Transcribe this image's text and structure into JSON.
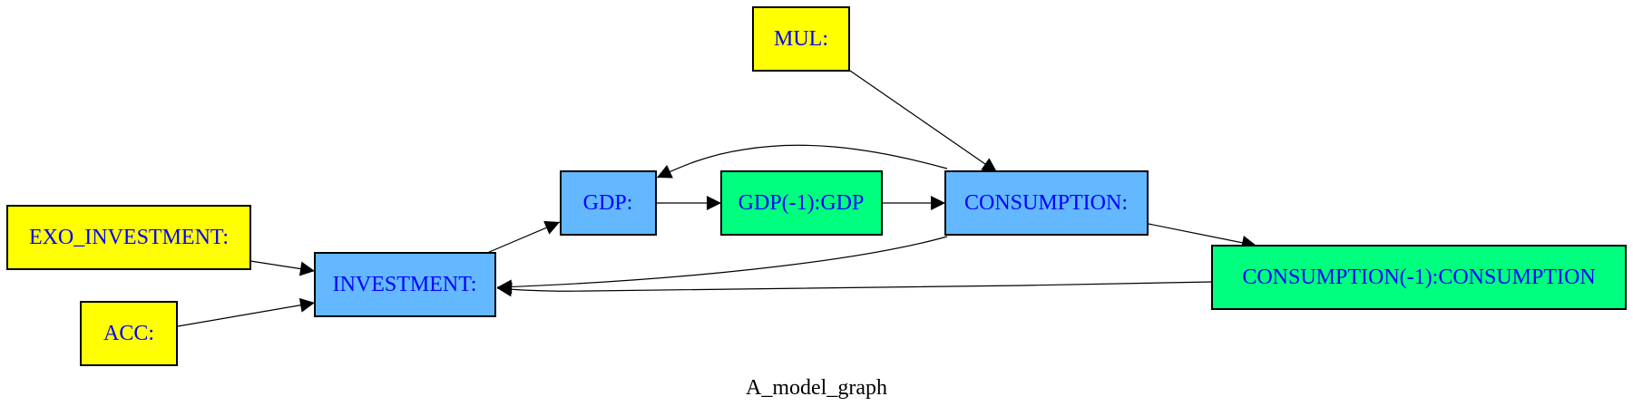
{
  "graph": {
    "caption": "A_model_graph"
  },
  "colors": {
    "exogenous": "#ffff00",
    "endogenous": "#63b8ff",
    "lagged": "#00ff7f",
    "label_text": "#0000ff",
    "edge": "#000000"
  },
  "nodes": {
    "mul": {
      "label": "MUL:",
      "kind": "exogenous"
    },
    "exo_investment": {
      "label": "EXO_INVESTMENT:",
      "kind": "exogenous"
    },
    "acc": {
      "label": "ACC:",
      "kind": "exogenous"
    },
    "investment": {
      "label": "INVESTMENT:",
      "kind": "endogenous"
    },
    "gdp": {
      "label": "GDP:",
      "kind": "endogenous"
    },
    "gdp_lag": {
      "label": "GDP(-1):GDP",
      "kind": "lagged"
    },
    "consumption": {
      "label": "CONSUMPTION:",
      "kind": "endogenous"
    },
    "consumption_lag": {
      "label": "CONSUMPTION(-1):CONSUMPTION",
      "kind": "lagged"
    }
  },
  "edges": [
    {
      "from": "mul",
      "to": "consumption"
    },
    {
      "from": "exo_investment",
      "to": "investment"
    },
    {
      "from": "acc",
      "to": "investment"
    },
    {
      "from": "investment",
      "to": "gdp"
    },
    {
      "from": "gdp",
      "to": "gdp_lag"
    },
    {
      "from": "gdp_lag",
      "to": "consumption"
    },
    {
      "from": "consumption",
      "to": "gdp"
    },
    {
      "from": "consumption",
      "to": "investment"
    },
    {
      "from": "consumption",
      "to": "consumption_lag"
    },
    {
      "from": "consumption_lag",
      "to": "investment"
    }
  ]
}
